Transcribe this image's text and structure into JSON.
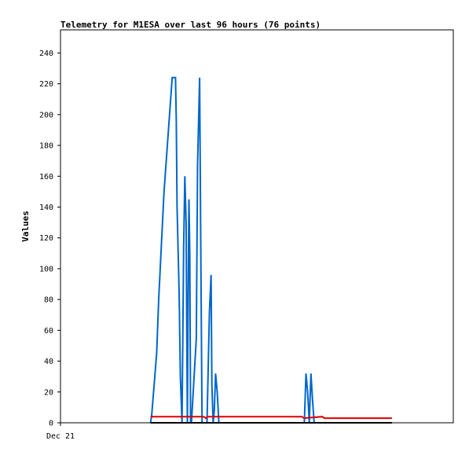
{
  "chart_data": {
    "type": "line",
    "title": "Telemetry for M1ESA over last 96 hours (76 points)",
    "xlabel": "",
    "ylabel": "Values",
    "x_ticks": [
      "Dec 21"
    ],
    "y_ticks": [
      "0",
      "20",
      "40",
      "60",
      "80",
      "100",
      "120",
      "140",
      "160",
      "180",
      "200",
      "220",
      "240"
    ],
    "xlim": [
      0,
      96
    ],
    "ylim": [
      0,
      255
    ],
    "grid": false,
    "legend": "none",
    "series": [
      {
        "color": "#0066cc",
        "x": [
          22.0,
          22.3,
          23.5,
          24.0,
          25.3,
          27.3,
          28.1,
          28.3,
          28.5,
          29.0,
          29.3,
          29.7,
          30.1,
          30.4,
          30.7,
          31.0,
          31.2,
          31.4,
          31.6,
          31.8,
          32.0,
          33.2,
          33.5,
          34.0,
          34.3,
          34.6,
          35.2,
          35.8,
          36.4,
          36.8,
          37.0,
          37.3,
          37.6,
          37.9,
          38.3,
          38.7,
          59.6,
          60.0,
          60.4,
          60.8,
          61.2,
          61.6,
          62.0
        ],
        "y": [
          0,
          5,
          45,
          80,
          150,
          224,
          224,
          196,
          140,
          85,
          30,
          0,
          115,
          160,
          130,
          0,
          80,
          145,
          110,
          0,
          0,
          55,
          168,
          224,
          112,
          0,
          0,
          0,
          72,
          96,
          25,
          0,
          8,
          32,
          20,
          0,
          0,
          32,
          20,
          0,
          32,
          15,
          0
        ]
      },
      {
        "color": "#dd0000",
        "x": [
          22.0,
          35.0,
          35.5,
          36.0,
          59.0,
          59.5,
          64.0,
          64.5,
          81.0
        ],
        "y": [
          4,
          4,
          3,
          4,
          4,
          3,
          4,
          3,
          3
        ]
      },
      {
        "color": "#000000",
        "x": [
          22.0,
          81.0
        ],
        "y": [
          0,
          0
        ]
      }
    ]
  }
}
